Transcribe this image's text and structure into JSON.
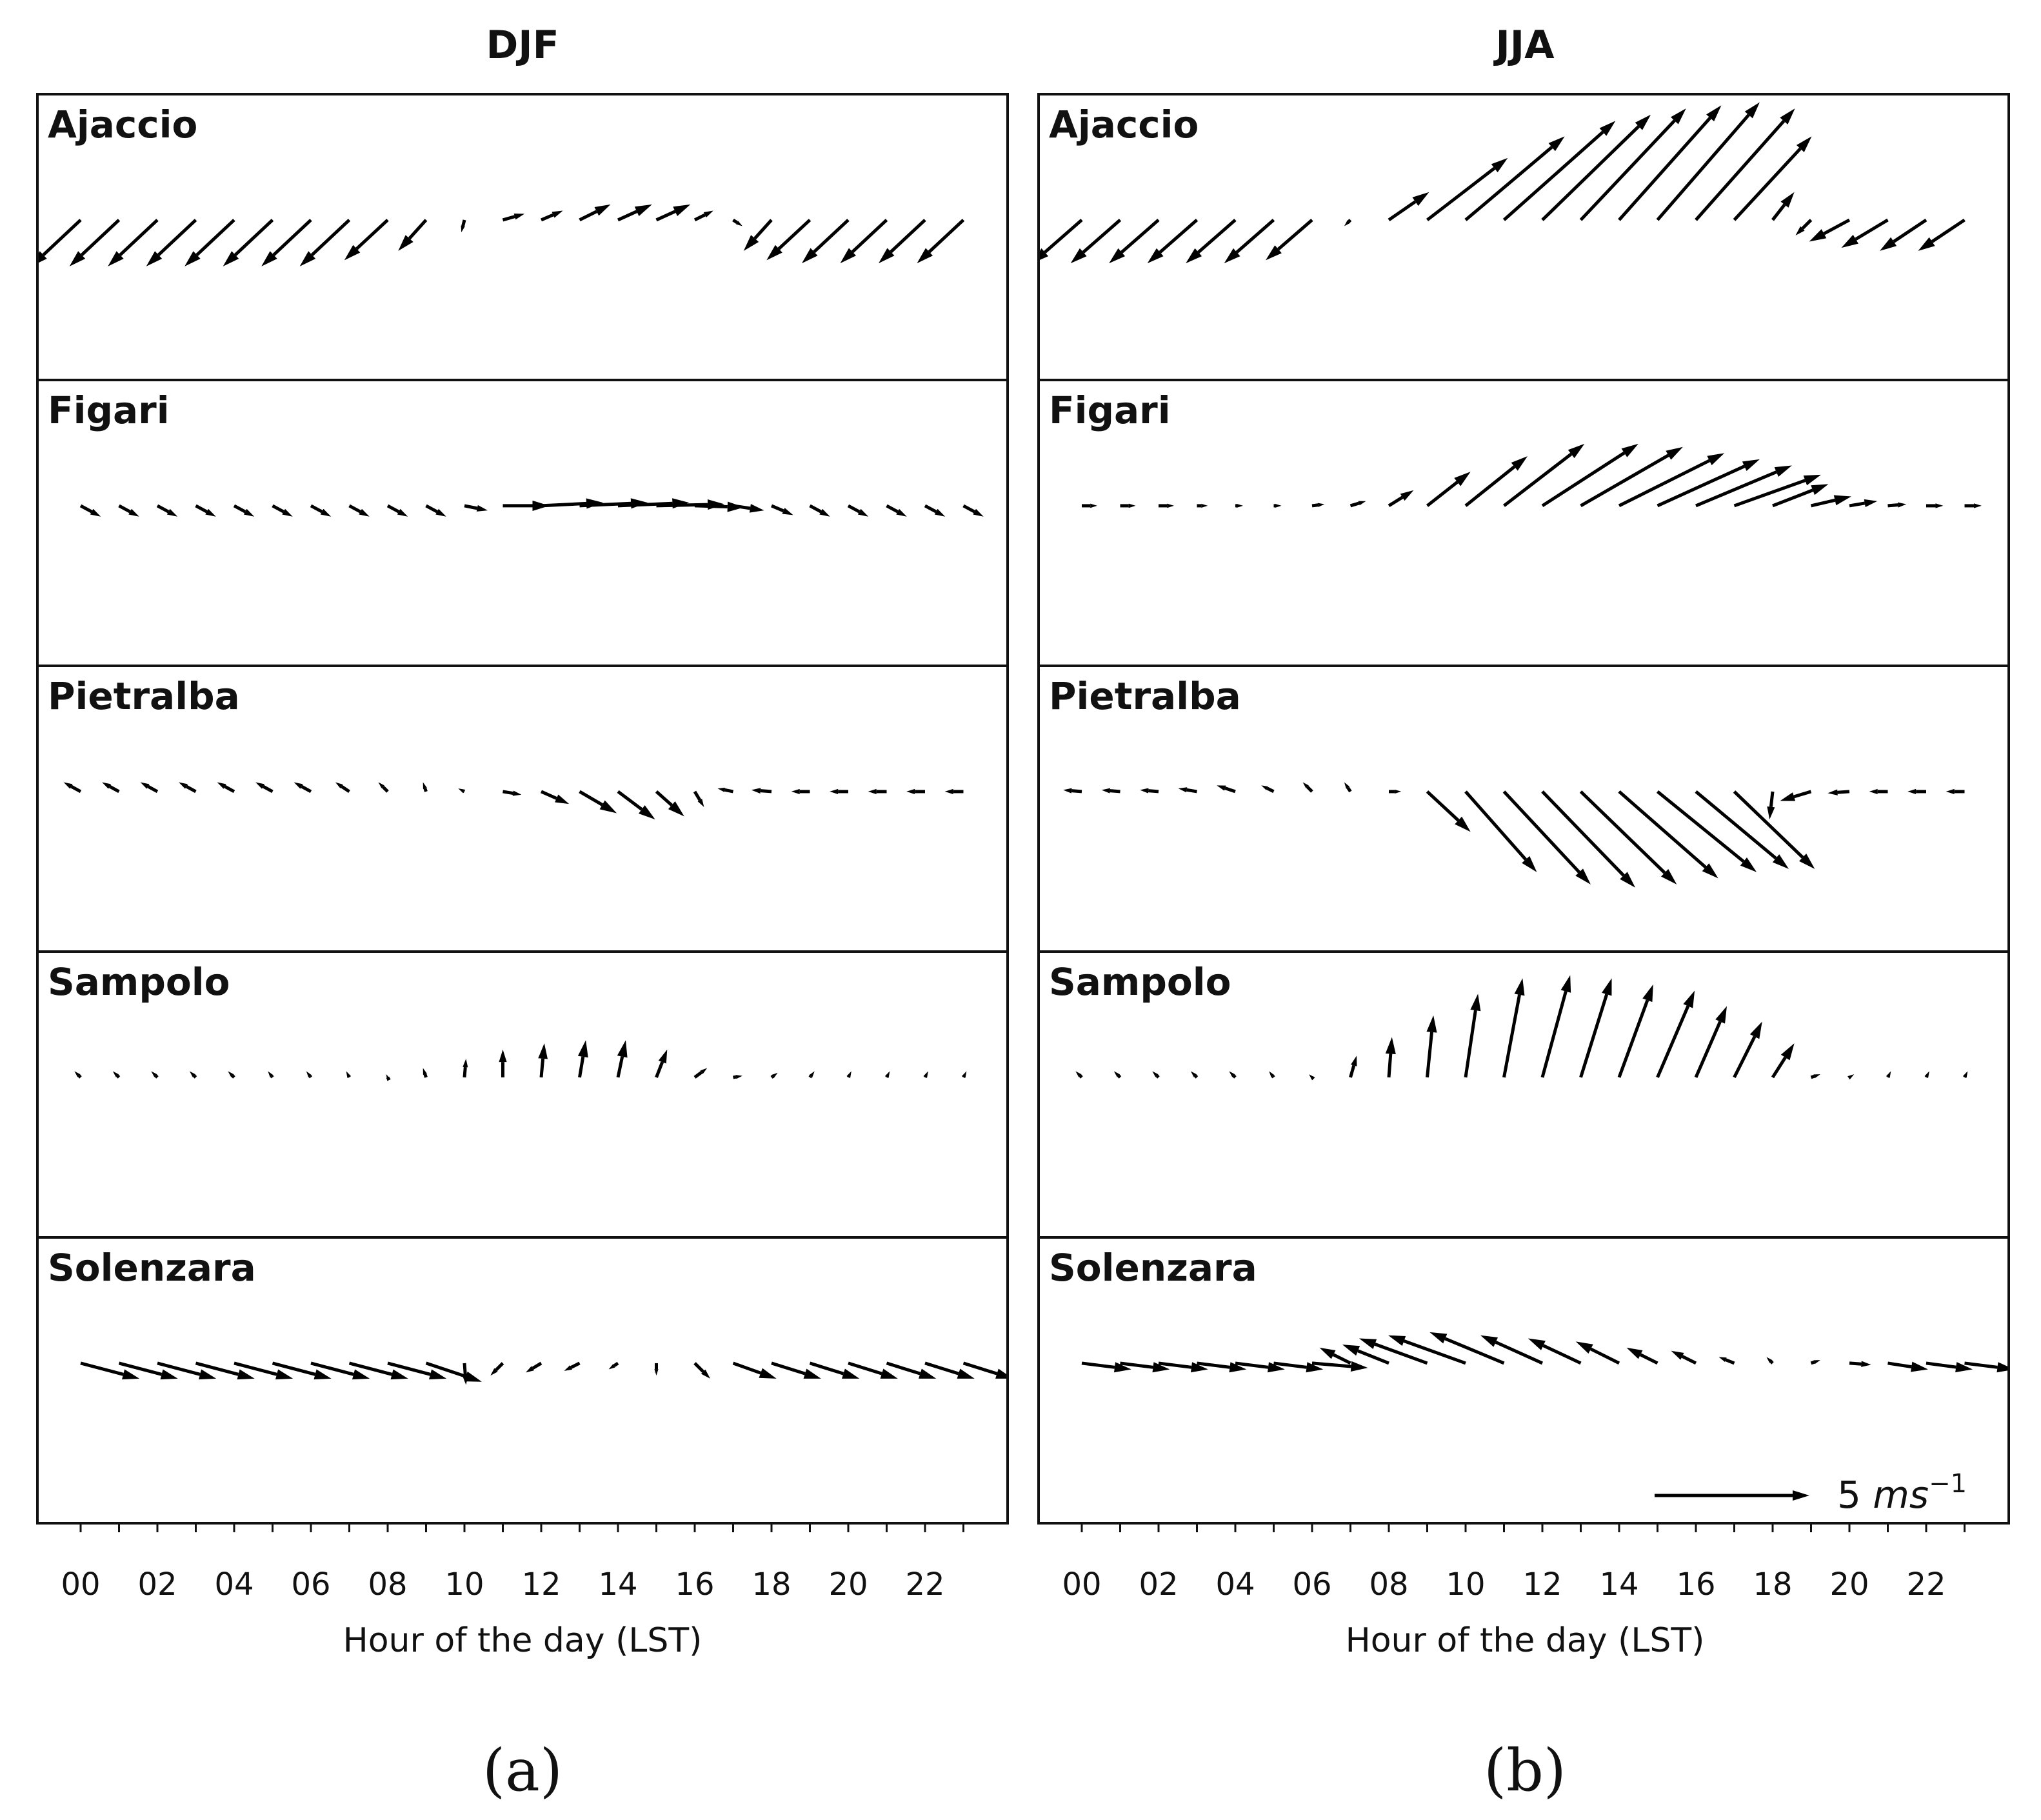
{
  "figure": {
    "xlabel": "Hour of the day (LST)",
    "xtick_labels": [
      "00",
      "02",
      "04",
      "06",
      "08",
      "10",
      "12",
      "14",
      "16",
      "18",
      "20",
      "22"
    ],
    "scale_label_num": "5",
    "scale_label_unit": "ms",
    "scale_label_exp": "−1",
    "colors": {
      "arrow": "#000000",
      "frame": "#111111",
      "background": "#ffffff"
    }
  },
  "chart_data": [
    {
      "type": "quiver",
      "panel_label": "(a)",
      "title": "DJF",
      "xlabel": "Hour of the day (LST)",
      "xlim": [
        -1.2,
        24.2
      ],
      "hours": [
        0,
        1,
        2,
        3,
        4,
        5,
        6,
        7,
        8,
        9,
        10,
        11,
        12,
        13,
        14,
        15,
        16,
        17,
        18,
        19,
        20,
        21,
        22,
        23
      ],
      "reference_vector": {
        "speed_ms": 5
      },
      "stations": [
        {
          "name": "Ajaccio",
          "u": [
            -1.6,
            -1.6,
            -1.6,
            -1.6,
            -1.6,
            -1.6,
            -1.6,
            -1.6,
            -1.4,
            -0.9,
            -0.1,
            0.7,
            0.7,
            1.0,
            1.1,
            1.1,
            0.6,
            0.3,
            -0.9,
            -1.4,
            -1.5,
            -1.5,
            -1.5,
            -1.5
          ],
          "v": [
            -1.5,
            -1.5,
            -1.5,
            -1.5,
            -1.5,
            -1.5,
            -1.5,
            -1.5,
            -1.3,
            -1.0,
            -0.4,
            0.2,
            0.3,
            0.5,
            0.5,
            0.5,
            0.3,
            -0.2,
            -1.0,
            -1.3,
            -1.4,
            -1.4,
            -1.4,
            -1.4
          ]
        },
        {
          "name": "Figari",
          "u": [
            0.65,
            0.65,
            0.65,
            0.65,
            0.65,
            0.65,
            0.65,
            0.65,
            0.65,
            0.65,
            0.75,
            1.5,
            2.0,
            2.2,
            2.3,
            2.2,
            1.6,
            1.0,
            0.7,
            0.65,
            0.65,
            0.65,
            0.65,
            0.65
          ],
          "v": [
            -0.35,
            -0.35,
            -0.35,
            -0.35,
            -0.35,
            -0.35,
            -0.35,
            -0.35,
            -0.35,
            -0.35,
            -0.15,
            0.0,
            0.1,
            0.1,
            0.1,
            0.05,
            -0.05,
            -0.15,
            -0.3,
            -0.35,
            -0.35,
            -0.35,
            -0.35,
            -0.35
          ]
        },
        {
          "name": "Pietralba",
          "u": [
            -0.55,
            -0.55,
            -0.55,
            -0.55,
            -0.55,
            -0.55,
            -0.55,
            -0.45,
            -0.3,
            -0.1,
            -0.2,
            0.6,
            0.9,
            1.2,
            1.2,
            0.9,
            0.3,
            -0.5,
            -0.65,
            -0.6,
            -0.6,
            -0.6,
            -0.6,
            -0.6
          ],
          "v": [
            0.3,
            0.3,
            0.3,
            0.3,
            0.3,
            0.3,
            0.3,
            0.3,
            0.3,
            0.3,
            0.1,
            -0.1,
            -0.4,
            -0.7,
            -0.9,
            -0.8,
            -0.5,
            0.1,
            0.05,
            0.0,
            0.0,
            0.0,
            0.0,
            0.0
          ]
        },
        {
          "name": "Sampolo",
          "u": [
            -0.2,
            -0.2,
            -0.2,
            -0.2,
            -0.2,
            -0.15,
            -0.15,
            -0.1,
            -0.05,
            -0.1,
            0.05,
            0.0,
            0.1,
            0.2,
            0.25,
            0.35,
            0.4,
            0.3,
            0.2,
            0.15,
            0.1,
            0.1,
            0.1,
            0.1
          ],
          "v": [
            0.2,
            0.2,
            0.2,
            0.2,
            0.2,
            0.2,
            0.2,
            0.2,
            0.1,
            0.3,
            0.6,
            0.9,
            1.1,
            1.2,
            1.2,
            0.9,
            0.3,
            0.05,
            0.15,
            0.2,
            0.2,
            0.2,
            0.2,
            0.2
          ]
        },
        {
          "name": "Solenzara",
          "u": [
            1.9,
            1.9,
            1.9,
            1.9,
            1.9,
            1.9,
            1.9,
            1.9,
            1.9,
            1.8,
            0.05,
            -0.4,
            -0.5,
            -0.5,
            -0.3,
            0.0,
            0.5,
            1.4,
            1.6,
            1.6,
            1.6,
            1.6,
            1.6,
            1.6
          ],
          "v": [
            -0.5,
            -0.5,
            -0.5,
            -0.5,
            -0.5,
            -0.5,
            -0.5,
            -0.5,
            -0.5,
            -0.6,
            -0.7,
            -0.4,
            -0.3,
            -0.25,
            -0.2,
            -0.4,
            -0.5,
            -0.5,
            -0.5,
            -0.5,
            -0.5,
            -0.5,
            -0.5,
            -0.5
          ]
        }
      ]
    },
    {
      "type": "quiver",
      "panel_label": "(b)",
      "title": "JJA",
      "xlabel": "Hour of the day (LST)",
      "xlim": [
        -1.2,
        24.2
      ],
      "hours": [
        0,
        1,
        2,
        3,
        4,
        5,
        6,
        7,
        8,
        9,
        10,
        11,
        12,
        13,
        14,
        15,
        16,
        17,
        18,
        19,
        20,
        21,
        22,
        23
      ],
      "reference_vector": {
        "speed_ms": 5
      },
      "stations": [
        {
          "name": "Ajaccio",
          "u": [
            -1.6,
            -1.6,
            -1.6,
            -1.6,
            -1.6,
            -1.6,
            -1.5,
            -0.2,
            1.3,
            2.6,
            3.2,
            3.6,
            3.5,
            3.4,
            3.3,
            3.3,
            3.2,
            2.5,
            0.7,
            -0.5,
            -1.3,
            -1.5,
            -1.5,
            -1.5
          ],
          "v": [
            -1.4,
            -1.4,
            -1.4,
            -1.4,
            -1.4,
            -1.4,
            -1.3,
            -0.2,
            0.9,
            2.0,
            2.7,
            3.2,
            3.4,
            3.6,
            3.7,
            3.8,
            3.6,
            2.7,
            0.9,
            -0.5,
            -0.7,
            -0.9,
            -1.0,
            -1.0
          ]
        },
        {
          "name": "Figari",
          "u": [
            0.5,
            0.5,
            0.5,
            0.35,
            0.25,
            0.25,
            0.4,
            0.5,
            0.8,
            1.4,
            2.0,
            2.6,
            3.1,
            3.3,
            3.4,
            3.3,
            3.1,
            2.8,
            1.8,
            1.3,
            0.9,
            0.6,
            0.55,
            0.55
          ],
          "v": [
            0.0,
            0.0,
            0.0,
            0.0,
            0.0,
            0.0,
            0.05,
            0.15,
            0.5,
            1.1,
            1.6,
            2.0,
            2.0,
            1.9,
            1.7,
            1.5,
            1.3,
            1.0,
            0.7,
            0.3,
            0.15,
            0.05,
            0.0,
            0.0
          ]
        },
        {
          "name": "Pietralba",
          "u": [
            -0.6,
            -0.6,
            -0.6,
            -0.6,
            -0.6,
            -0.4,
            -0.3,
            -0.2,
            0.4,
            1.4,
            2.3,
            2.8,
            3.0,
            3.1,
            3.2,
            3.2,
            3.0,
            2.6,
            -0.1,
            -1.0,
            -0.7,
            -0.6,
            -0.6,
            -0.6
          ],
          "v": [
            0.05,
            0.05,
            0.05,
            0.1,
            0.2,
            0.2,
            0.3,
            0.3,
            0.0,
            -1.3,
            -2.6,
            -3.0,
            -3.1,
            -3.0,
            -2.8,
            -2.6,
            -2.5,
            -2.5,
            -0.9,
            -0.3,
            -0.05,
            0.0,
            0.0,
            0.0
          ]
        },
        {
          "name": "Sampolo",
          "u": [
            -0.2,
            -0.2,
            -0.2,
            -0.2,
            -0.2,
            -0.15,
            -0.1,
            0.2,
            0.1,
            0.2,
            0.4,
            0.6,
            0.9,
            1.0,
            1.1,
            1.2,
            1.0,
            0.9,
            0.7,
            0.3,
            0.15,
            0.1,
            0.1,
            0.1
          ],
          "v": [
            0.2,
            0.2,
            0.2,
            0.2,
            0.2,
            0.2,
            0.1,
            0.7,
            1.3,
            2.0,
            2.7,
            3.2,
            3.3,
            3.2,
            3.0,
            2.8,
            2.3,
            1.8,
            1.1,
            0.1,
            0.1,
            0.2,
            0.2,
            0.2
          ]
        },
        {
          "name": "Solenzara",
          "u": [
            1.6,
            1.6,
            1.6,
            1.6,
            1.6,
            1.6,
            1.8,
            -1.0,
            -1.5,
            -2.2,
            -2.5,
            -2.4,
            -2.0,
            -1.7,
            -1.4,
            -1.0,
            -0.8,
            -0.5,
            -0.2,
            0.3,
            0.7,
            1.3,
            1.5,
            1.6
          ],
          "v": [
            -0.2,
            -0.2,
            -0.2,
            -0.2,
            -0.2,
            -0.2,
            -0.15,
            0.5,
            0.6,
            0.8,
            0.9,
            1.0,
            0.9,
            0.8,
            0.7,
            0.5,
            0.4,
            0.2,
            0.2,
            0.1,
            -0.05,
            -0.2,
            -0.2,
            -0.2
          ]
        }
      ]
    }
  ]
}
